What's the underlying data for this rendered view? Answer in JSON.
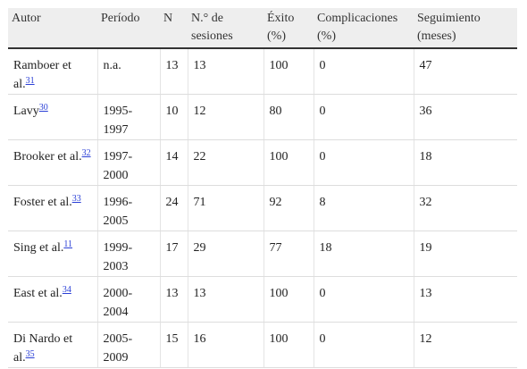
{
  "table": {
    "headers": [
      "Autor",
      "Período",
      "N",
      "N.° de sesiones",
      "Éxito (%)",
      "Complicaciones (%)",
      "Seguimiento (meses)"
    ],
    "rows": [
      {
        "author": "Ramboer et al.",
        "ref": "31",
        "period": "n.a.",
        "n": "13",
        "sessions": "13",
        "success": "100",
        "complications": "0",
        "followup": "47"
      },
      {
        "author": "Lavy",
        "ref": "30",
        "period": "1995-1997",
        "n": "10",
        "sessions": "12",
        "success": "80",
        "complications": "0",
        "followup": "36"
      },
      {
        "author": "Brooker et al.",
        "ref": "32",
        "period": "1997-2000",
        "n": "14",
        "sessions": "22",
        "success": "100",
        "complications": "0",
        "followup": "18"
      },
      {
        "author": "Foster et al.",
        "ref": "33",
        "period": "1996-2005",
        "n": "24",
        "sessions": "71",
        "success": "92",
        "complications": "8",
        "followup": "32"
      },
      {
        "author": "Sing et al.",
        "ref": "11",
        "period": "1999-2003",
        "n": "17",
        "sessions": "29",
        "success": "77",
        "complications": "18",
        "followup": "19"
      },
      {
        "author": "East et al.",
        "ref": "34",
        "period": "2000-2004",
        "n": "13",
        "sessions": "13",
        "success": "100",
        "complications": "0",
        "followup": "13"
      },
      {
        "author": "Di Nardo et al.",
        "ref": "35",
        "period": "2005-2009",
        "n": "15",
        "sessions": "16",
        "success": "100",
        "complications": "0",
        "followup": "12"
      }
    ]
  }
}
